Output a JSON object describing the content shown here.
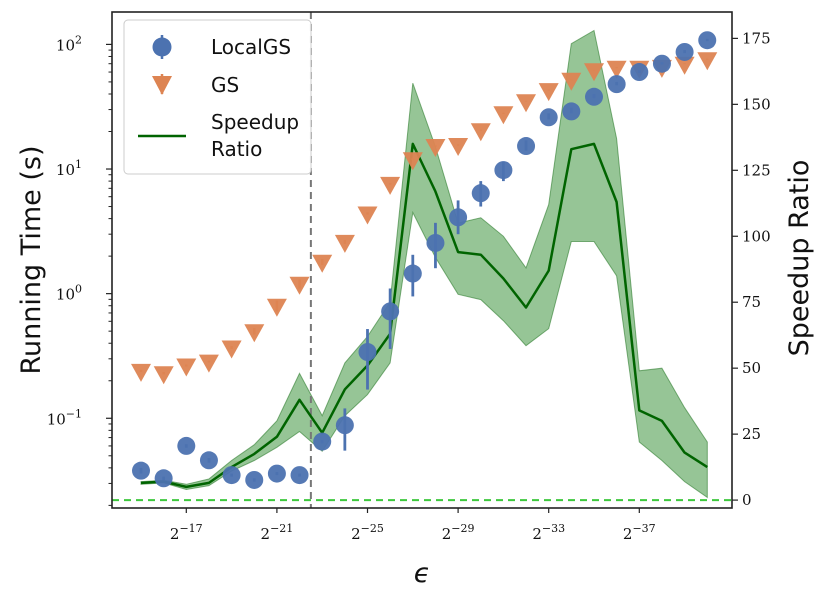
{
  "chart_data": {
    "type": "scatter",
    "xlabel": "ϵ",
    "ylabel": "Running Time (s)",
    "y2label": "Speedup Ratio",
    "x_exponents": [
      -15,
      -16,
      -17,
      -18,
      -19,
      -20,
      -21,
      -22,
      -23,
      -24,
      -25,
      -26,
      -27,
      -28,
      -29,
      -30,
      -31,
      -32,
      -33,
      -34,
      -35,
      -36,
      -37,
      -38,
      -39,
      -40
    ],
    "x_ticks": [
      {
        "exp": -17,
        "base": "2",
        "sup": "−17"
      },
      {
        "exp": -21,
        "base": "2",
        "sup": "−21"
      },
      {
        "exp": -25,
        "base": "2",
        "sup": "−25"
      },
      {
        "exp": -29,
        "base": "2",
        "sup": "−29"
      },
      {
        "exp": -33,
        "base": "2",
        "sup": "−33"
      },
      {
        "exp": -37,
        "base": "2",
        "sup": "−37"
      }
    ],
    "y_log_ticks": [
      {
        "exp": -1,
        "base": "10",
        "sup": "−1"
      },
      {
        "exp": 0,
        "base": "10",
        "sup": "0"
      },
      {
        "exp": 1,
        "base": "10",
        "sup": "1"
      },
      {
        "exp": 2,
        "base": "10",
        "sup": "2"
      }
    ],
    "ylim_log10": [
      -1.72,
      2.26
    ],
    "y2_ticks": [
      "0",
      "25",
      "50",
      "75",
      "100",
      "125",
      "150",
      "175"
    ],
    "y2lim": [
      -3,
      185
    ],
    "series": [
      {
        "name": "LocalGS",
        "color": "#4c72b0",
        "marker": "circle",
        "values": [
          0.038,
          0.033,
          0.06,
          0.046,
          0.035,
          0.032,
          0.036,
          0.035,
          0.065,
          0.088,
          0.34,
          0.72,
          1.45,
          2.55,
          4.1,
          6.4,
          9.8,
          15.3,
          26,
          29,
          38,
          48,
          60,
          70,
          87,
          108
        ],
        "err_low": [
          0.036,
          0.032,
          0.058,
          0.044,
          0.034,
          0.031,
          0.035,
          0.034,
          0.063,
          0.055,
          0.17,
          0.36,
          0.95,
          1.6,
          3.0,
          5.0,
          8.0,
          14.0,
          25,
          28,
          37,
          47,
          59,
          69,
          85,
          106
        ],
        "err_high": [
          0.04,
          0.034,
          0.062,
          0.048,
          0.036,
          0.033,
          0.037,
          0.036,
          0.067,
          0.12,
          0.52,
          1.1,
          2.05,
          3.7,
          5.6,
          8.0,
          11.5,
          17.0,
          28,
          31,
          40,
          50,
          62,
          72,
          90,
          111
        ]
      },
      {
        "name": "GS",
        "color": "#dd8452",
        "marker": "triangle-down",
        "values": [
          0.24,
          0.23,
          0.265,
          0.285,
          0.37,
          0.5,
          0.8,
          1.2,
          1.8,
          2.6,
          4.4,
          7.6,
          12.0,
          15.3,
          15.6,
          20.5,
          28,
          35,
          43,
          52,
          62,
          65,
          65,
          66,
          70,
          76
        ],
        "err_low": [
          0.235,
          0.225,
          0.26,
          0.28,
          0.36,
          0.47,
          0.72,
          1.1,
          1.7,
          2.5,
          4.3,
          7.5,
          11.8,
          15.1,
          15.4,
          20.3,
          27.7,
          34.7,
          42.6,
          51.5,
          61.4,
          64.4,
          64.4,
          65.4,
          69.3,
          75.2
        ],
        "err_high": [
          0.245,
          0.235,
          0.27,
          0.29,
          0.38,
          0.53,
          0.88,
          1.3,
          1.9,
          2.7,
          4.5,
          7.7,
          12.2,
          15.5,
          15.8,
          20.7,
          28.3,
          35.3,
          43.4,
          52.5,
          62.6,
          65.7,
          65.7,
          66.6,
          70.7,
          76.8
        ]
      },
      {
        "name": "Speedup Ratio",
        "legend_label_lines": [
          "Speedup",
          "Ratio"
        ],
        "color": "#006400",
        "axis": "right",
        "values": [
          6.5,
          7.0,
          5.0,
          6.5,
          12.5,
          17.5,
          24.0,
          38.0,
          25.5,
          42.0,
          51.0,
          63.0,
          135.0,
          117.0,
          94.0,
          93.0,
          84.0,
          73.0,
          87.0,
          133.0,
          135.0,
          113.0,
          34.0,
          30.0,
          18.0,
          12.5
        ],
        "band_low": [
          6.0,
          6.5,
          4.0,
          5.5,
          11.0,
          15.0,
          20.0,
          26.0,
          18.5,
          32.0,
          40.0,
          52.0,
          109.0,
          92.0,
          78.0,
          76.0,
          68.0,
          58.5,
          65.0,
          98.0,
          98.0,
          85.0,
          22.0,
          15.0,
          7.0,
          1.0
        ],
        "band_high": [
          7.0,
          7.5,
          6.0,
          8.0,
          15.0,
          21.0,
          30.0,
          48.0,
          32.0,
          52.0,
          62.0,
          75.0,
          158.0,
          134.0,
          105.0,
          107.0,
          100.0,
          88.0,
          112.0,
          173.0,
          178.0,
          137.0,
          49.0,
          50.0,
          35.0,
          22.0
        ]
      }
    ],
    "vline_exp": -22.5,
    "hline_y2": 0
  }
}
